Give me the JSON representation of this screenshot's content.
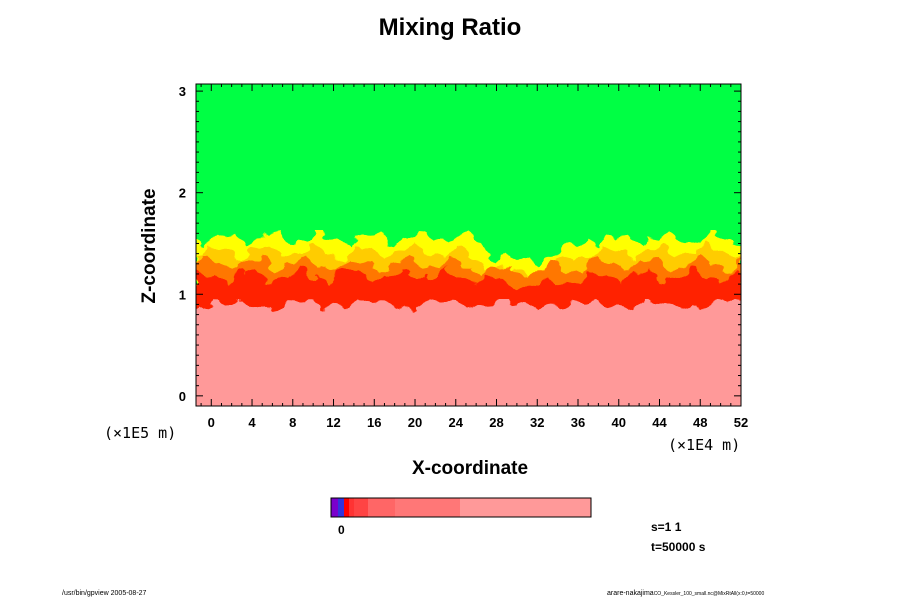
{
  "chart_data": {
    "type": "heatmap",
    "title": "Mixing Ratio",
    "xlabel": "X-coordinate",
    "ylabel": "Z-coordinate",
    "x_scale_label": "(×1E4 m)",
    "y_scale_label": "(×1E5 m)",
    "xlim": [
      -1.5,
      52
    ],
    "ylim": [
      -0.1,
      3.07
    ],
    "x_ticks": [
      "0",
      "4",
      "8",
      "12",
      "16",
      "20",
      "24",
      "28",
      "32",
      "36",
      "40",
      "44",
      "48",
      "52"
    ],
    "y_ticks": [
      "0",
      "1",
      "2",
      "3"
    ],
    "regions": [
      {
        "name": "upper layer",
        "z_range": [
          1.55,
          3.07
        ],
        "color": "#00ff44"
      },
      {
        "name": "turbulent interface",
        "z_range": [
          0.9,
          1.55
        ],
        "colors": [
          "#ffff00",
          "#ffcc00",
          "#ff7700",
          "#ff2200"
        ]
      },
      {
        "name": "lower layer",
        "z_range": [
          -0.1,
          0.9
        ],
        "color": "#ff9999"
      }
    ],
    "colorbar": {
      "label": "0",
      "colors": [
        "#7a00cc",
        "#3333dd",
        "#ff0000",
        "#ff3333",
        "#ff4444",
        "#ff6666",
        "#ff7777",
        "#ff9999"
      ]
    },
    "annotations": {
      "s": "s=1 1",
      "t": "t=50000 s"
    }
  },
  "footer": {
    "left": "/usr/bin/gpview 2005-08-27",
    "right_user": "arare-nakajima",
    "right_path": "CO_Kessler_100_small.nc@MixRtAll(x:0,t=50000"
  }
}
